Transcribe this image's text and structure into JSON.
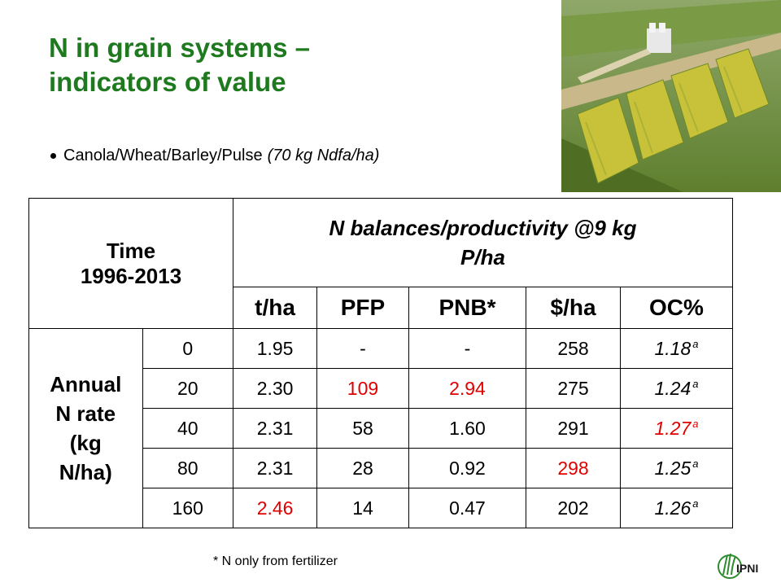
{
  "title": {
    "line1": "N in grain systems –",
    "line2": "indicators of value"
  },
  "bullet": {
    "text": "Canola/Wheat/Barley/Pulse",
    "note": "(70 kg Ndfa/ha)"
  },
  "table": {
    "time_header": {
      "line1": "Time",
      "line2": "1996-2013"
    },
    "group_header": {
      "line1": "N balances/productivity @9 kg",
      "line2": "P/ha"
    },
    "columns": [
      "t/ha",
      "PFP",
      "PNB*",
      "$/ha",
      "OC%"
    ],
    "row_header": {
      "line1": "Annual",
      "line2": "N rate",
      "line3": "(kg",
      "line4": "N/ha)"
    },
    "rows": [
      {
        "rate": "0",
        "tha": "1.95",
        "pfp": "-",
        "pnb": "-",
        "dol": "258",
        "oc": "1.18",
        "oc_sup": "a"
      },
      {
        "rate": "20",
        "tha": "2.30",
        "pfp": "109",
        "pnb": "2.94",
        "dol": "275",
        "oc": "1.24",
        "oc_sup": "a"
      },
      {
        "rate": "40",
        "tha": "2.31",
        "pfp": "58",
        "pnb": "1.60",
        "dol": "291",
        "oc": "1.27",
        "oc_sup": "a"
      },
      {
        "rate": "80",
        "tha": "2.31",
        "pfp": "28",
        "pnb": "0.92",
        "dol": "298",
        "oc": "1.25",
        "oc_sup": "a"
      },
      {
        "rate": "160",
        "tha": "2.46",
        "pfp": "14",
        "pnb": "0.47",
        "dol": "202",
        "oc": "1.26",
        "oc_sup": "a"
      }
    ]
  },
  "footnote": "* N only from fertilizer",
  "logo": {
    "text": "IPNI"
  },
  "colors": {
    "title": "#1f7a1f",
    "highlight": "#e00000"
  }
}
